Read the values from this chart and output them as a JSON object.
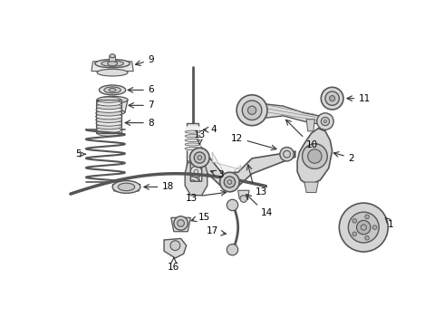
{
  "background_color": "#ffffff",
  "line_color": "#555555",
  "label_color": "#000000",
  "fig_width": 4.9,
  "fig_height": 3.6,
  "dpi": 100
}
